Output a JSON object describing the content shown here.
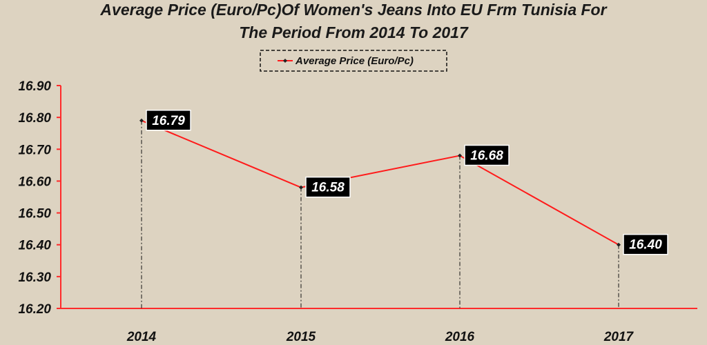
{
  "chart_data": {
    "type": "line",
    "title_line1": "Average Price (Euro/Pc)Of Women's Jeans Into EU Frm Tunisia For",
    "title_line2": "The Period From 2014 To 2017",
    "categories": [
      "2014",
      "2015",
      "2016",
      "2017"
    ],
    "series": [
      {
        "name": "Average Price (Euro/Pc)",
        "values": [
          16.79,
          16.58,
          16.68,
          16.4
        ],
        "labels": [
          "16.79",
          "16.58",
          "16.68",
          "16.40"
        ]
      }
    ],
    "yticks": [
      "16.90",
      "16.80",
      "16.70",
      "16.60",
      "16.50",
      "16.40",
      "16.30",
      "16.20"
    ],
    "ylim": [
      16.2,
      16.9
    ],
    "legend_position": "top-center",
    "grid": false,
    "colors": {
      "background": "#ddd3c1",
      "line": "#ff1a1a",
      "axis": "#ff2a2a",
      "marker": "#222222",
      "label_bg": "#000000",
      "label_text": "#ffffff"
    }
  }
}
